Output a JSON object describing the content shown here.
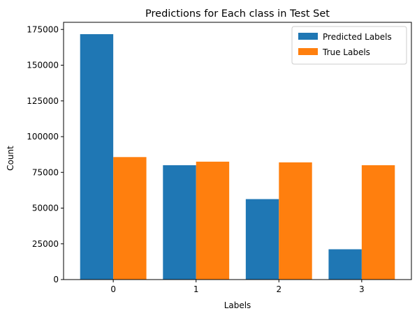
{
  "chart_data": {
    "type": "bar",
    "title": "Predictions for Each class in Test Set",
    "xlabel": "Labels",
    "ylabel": "Count",
    "categories": [
      "0",
      "1",
      "2",
      "3"
    ],
    "series": [
      {
        "name": "Predicted Labels",
        "color": "#1f77b4",
        "values": [
          171700,
          80000,
          56300,
          21200
        ]
      },
      {
        "name": "True Labels",
        "color": "#ff7f0e",
        "values": [
          85700,
          82500,
          82000,
          80000
        ]
      }
    ],
    "ylim": [
      0,
      180000
    ],
    "yticks": [
      0,
      25000,
      50000,
      75000,
      100000,
      125000,
      150000,
      175000
    ],
    "legend_position": "top-right",
    "grid": false
  }
}
